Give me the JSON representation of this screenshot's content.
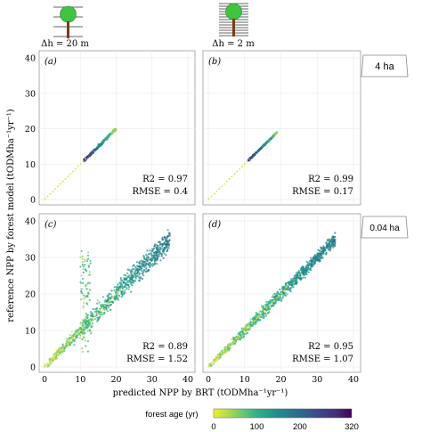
{
  "header": {
    "tree_left_label": "Δh = 20 m",
    "tree_right_label": "Δh = 2 m"
  },
  "side_labels": {
    "top": "4 ha",
    "bottom": "0.04 ha"
  },
  "axes": {
    "ylabel": "reference NPP by forest model (tODMha⁻¹yr⁻¹)",
    "xlabel": "predicted NPP by BRT (tODMha⁻¹yr⁻¹)"
  },
  "colorbar": {
    "label": "forest age (yr)",
    "ticks": [
      "0",
      "100",
      "200",
      "320"
    ],
    "range": [
      0,
      320
    ],
    "colors": [
      "#f1ee2b",
      "#8fd55a",
      "#34b48a",
      "#21908c",
      "#2c6f8e",
      "#3b4c8c",
      "#462f7a",
      "#440154"
    ]
  },
  "chart_data": [
    {
      "type": "scatter",
      "panel": "(a)",
      "xlim": [
        0,
        40
      ],
      "ylim": [
        0,
        40
      ],
      "x_ticks": [
        "0",
        "10",
        "20",
        "30",
        "40"
      ],
      "y_ticks": [
        "0",
        "10",
        "20",
        "30",
        "40"
      ],
      "stats": {
        "r2": "R2 = 0.97",
        "rmse": "RMSE = 0.4"
      },
      "cloud": {
        "x_range": [
          11,
          20
        ],
        "y_range": [
          11,
          20
        ]
      }
    },
    {
      "type": "scatter",
      "panel": "(b)",
      "xlim": [
        0,
        40
      ],
      "ylim": [
        0,
        40
      ],
      "x_ticks": [
        "0",
        "10",
        "20",
        "30",
        "40"
      ],
      "y_ticks": [
        "0",
        "10",
        "20",
        "30",
        "40"
      ],
      "stats": {
        "r2": "R2 = 0.99",
        "rmse": "RMSE = 0.17"
      },
      "cloud": {
        "x_range": [
          11,
          19
        ],
        "y_range": [
          11,
          19
        ]
      }
    },
    {
      "type": "scatter",
      "panel": "(c)",
      "xlim": [
        0,
        40
      ],
      "ylim": [
        0,
        40
      ],
      "x_ticks": [
        "0",
        "10",
        "20",
        "30",
        "40"
      ],
      "y_ticks": [
        "0",
        "10",
        "20",
        "30",
        "40"
      ],
      "stats": {
        "r2": "R2 = 0.89",
        "rmse": "RMSE = 1.52"
      },
      "cloud": {
        "x_range": [
          0,
          36
        ],
        "y_range": [
          0,
          36
        ]
      }
    },
    {
      "type": "scatter",
      "panel": "(d)",
      "xlim": [
        0,
        40
      ],
      "ylim": [
        0,
        40
      ],
      "x_ticks": [
        "0",
        "10",
        "20",
        "30",
        "40"
      ],
      "y_ticks": [
        "0",
        "10",
        "20",
        "30",
        "40"
      ],
      "stats": {
        "r2": "R2 = 0.95",
        "rmse": "RMSE = 1.07"
      },
      "cloud": {
        "x_range": [
          0,
          36
        ],
        "y_range": [
          0,
          36
        ]
      }
    }
  ]
}
